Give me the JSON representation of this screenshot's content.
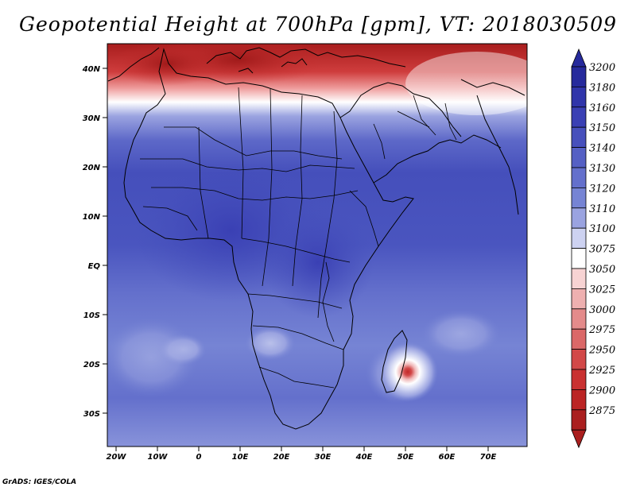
{
  "title": "Geopotential Height at 700hPa [gpm], VT: 2018030509",
  "credit": "GrADS: IGES/COLA",
  "lat_labels": [
    "40N",
    "30N",
    "20N",
    "10N",
    "EQ",
    "10S",
    "20S",
    "30S"
  ],
  "lon_labels": [
    "20W",
    "10W",
    "0",
    "10E",
    "20E",
    "30E",
    "40E",
    "50E",
    "60E",
    "70E"
  ],
  "colorbar": {
    "levels": [
      "3200",
      "3180",
      "3160",
      "3150",
      "3140",
      "3130",
      "3120",
      "3110",
      "3100",
      "3075",
      "3050",
      "3025",
      "3000",
      "2975",
      "2950",
      "2925",
      "2900",
      "2875"
    ],
    "colors": [
      "#262a9c",
      "#3035aa",
      "#3a40b4",
      "#4750bc",
      "#5560c4",
      "#6470cc",
      "#7684d4",
      "#9aa3e0",
      "#cdd2f1",
      "#ffffff",
      "#f7d3d3",
      "#eeb0b0",
      "#e48b8b",
      "#db6868",
      "#d24848",
      "#c93131",
      "#bb2424",
      "#aa1f1f"
    ],
    "top_arrow_color": "#262a9c",
    "bottom_arrow_color": "#aa1f1f"
  },
  "map": {
    "field": "Geopotential Height at 700hPa",
    "units": "gpm",
    "valid_time": "2018030509",
    "low_center_label": "cyclone near 21S 51E"
  }
}
